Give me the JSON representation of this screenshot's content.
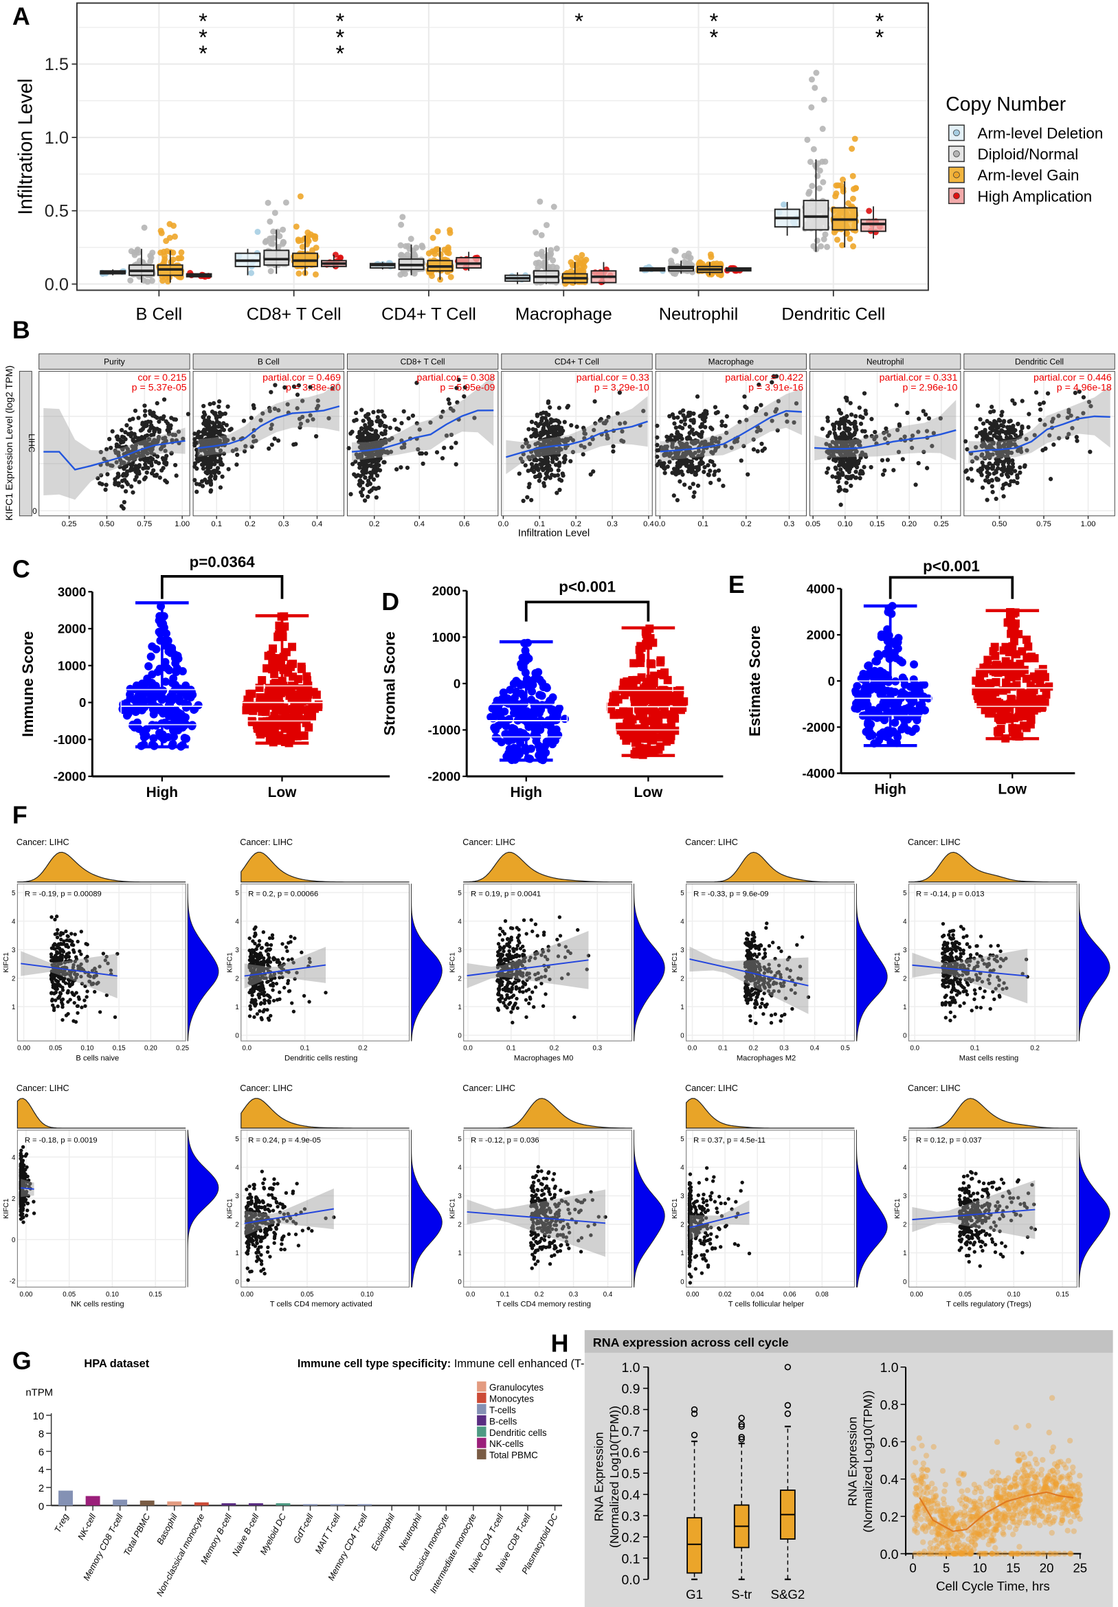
{
  "chart_data": [
    {
      "panel": "A",
      "type": "box",
      "ylabel": "Infiltration Level",
      "y_ticks": [
        0.0,
        0.5,
        1.0,
        1.5
      ],
      "y_tick_labels": [
        "0.0",
        "0.5",
        "1.0",
        "1.5"
      ],
      "ylim": [
        -0.04,
        1.93
      ],
      "categories": [
        "B Cell",
        "CD8+ T Cell",
        "CD4+ T Cell",
        "Macrophage",
        "Neutrophil",
        "Dendritic Cell"
      ],
      "significance": [
        "***",
        "***",
        "",
        "*",
        "**",
        "**"
      ],
      "legend_title": "Copy Number",
      "legend_position": "right",
      "box_format": "[min, q1, median, q3, max]",
      "series": [
        {
          "name": "Arm-level Deletion",
          "color": "#a6cee3",
          "fill": "#e4f1f8",
          "boxes": [
            [
              0.06,
              0.07,
              0.08,
              0.09,
              0.1
            ],
            [
              0.06,
              0.12,
              0.16,
              0.21,
              0.24
            ],
            [
              0.1,
              0.11,
              0.13,
              0.14,
              0.15
            ],
            [
              0.0,
              0.02,
              0.04,
              0.06,
              0.08
            ],
            [
              0.09,
              0.09,
              0.1,
              0.11,
              0.11
            ],
            [
              0.33,
              0.39,
              0.45,
              0.51,
              0.56
            ]
          ]
        },
        {
          "name": "Diploid/Normal",
          "color": "#b5b5b5",
          "fill": "#e6e6e6",
          "boxes": [
            [
              0.01,
              0.06,
              0.09,
              0.13,
              0.24
            ],
            [
              0.07,
              0.13,
              0.17,
              0.23,
              0.37
            ],
            [
              0.06,
              0.1,
              0.13,
              0.17,
              0.27
            ],
            [
              0.0,
              0.01,
              0.05,
              0.09,
              0.25
            ],
            [
              0.07,
              0.09,
              0.11,
              0.12,
              0.16
            ],
            [
              0.22,
              0.37,
              0.46,
              0.57,
              0.85
            ]
          ]
        },
        {
          "name": "Arm-level Gain",
          "color": "#eea62a",
          "fill": "#f2b640",
          "boxes": [
            [
              0.01,
              0.06,
              0.1,
              0.13,
              0.23
            ],
            [
              0.06,
              0.12,
              0.16,
              0.21,
              0.33
            ],
            [
              0.03,
              0.09,
              0.12,
              0.16,
              0.25
            ],
            [
              0.0,
              0.01,
              0.04,
              0.07,
              0.15
            ],
            [
              0.06,
              0.08,
              0.1,
              0.12,
              0.15
            ],
            [
              0.25,
              0.37,
              0.44,
              0.52,
              0.7
            ]
          ]
        },
        {
          "name": "High Amplication",
          "color": "#dd1111",
          "fill": "#f2aaaa",
          "boxes": [
            [
              0.05,
              0.05,
              0.06,
              0.07,
              0.07
            ],
            [
              0.11,
              0.12,
              0.14,
              0.16,
              0.2
            ],
            [
              0.09,
              0.11,
              0.14,
              0.18,
              0.22
            ],
            [
              0.0,
              0.01,
              0.05,
              0.09,
              0.15
            ],
            [
              0.09,
              0.09,
              0.1,
              0.11,
              0.11
            ],
            [
              0.31,
              0.36,
              0.41,
              0.44,
              0.53
            ]
          ]
        }
      ]
    },
    {
      "panel": "B",
      "type": "scatter",
      "ylabel": "KIFC1 Expression Level (log2 TPM)",
      "xlabel": "Infiltration Level",
      "strip_label": "LIHC",
      "y_ticks": [
        0
      ],
      "facets": [
        {
          "title": "Purity",
          "stat_line1": "cor = 0.215",
          "stat_line2": "p = 5.37e-05",
          "xlim": [
            0.05,
            1.05
          ],
          "x_ticks": [
            "0.25",
            "0.50",
            "0.75",
            "1.00"
          ]
        },
        {
          "title": "B Cell",
          "stat_line1": "partial.cor = 0.469",
          "stat_line2": "p = 3.38e-20",
          "xlim": [
            0.03,
            0.48
          ],
          "x_ticks": [
            "0.1",
            "0.2",
            "0.3",
            "0.4"
          ]
        },
        {
          "title": "CD8+ T Cell",
          "stat_line1": "partial.cor = 0.308",
          "stat_line2": "p = 5.95e-09",
          "xlim": [
            0.08,
            0.75
          ],
          "x_ticks": [
            "0.2",
            "0.4",
            "0.6"
          ]
        },
        {
          "title": "CD4+ T Cell",
          "stat_line1": "partial.cor = 0.33",
          "stat_line2": "p = 3.29e-10",
          "xlim": [
            -0.005,
            0.41
          ],
          "x_ticks": [
            "0.0",
            "0.1",
            "0.2",
            "0.3",
            "0.4"
          ]
        },
        {
          "title": "Macrophage",
          "stat_line1": "partial.cor = 0.422",
          "stat_line2": "p = 3.91e-16",
          "xlim": [
            -0.01,
            0.34
          ],
          "x_ticks": [
            "0.0",
            "0.1",
            "0.2",
            "0.3"
          ]
        },
        {
          "title": "Neutrophil",
          "stat_line1": "partial.cor = 0.331",
          "stat_line2": "p = 2.96e-10",
          "xlim": [
            0.045,
            0.28
          ],
          "x_ticks": [
            "0.05",
            "0.10",
            "0.15",
            "0.20",
            "0.25"
          ]
        },
        {
          "title": "Dendritic Cell",
          "stat_line1": "partial.cor = 0.446",
          "stat_line2": "p = 4.96e-18",
          "xlim": [
            0.3,
            1.15
          ],
          "x_ticks": [
            "0.50",
            "0.75",
            "1.00"
          ]
        }
      ]
    },
    {
      "panel": "C",
      "type": "scatter-box",
      "ylabel": "Immune Score",
      "ylim": [
        -2000,
        3000
      ],
      "y_ticks": [
        3000,
        2000,
        1000,
        0,
        -1000,
        -2000
      ],
      "p_label": "p=0.0364",
      "groups": [
        {
          "name": "High",
          "color": "#0000ff",
          "min": -1200,
          "q1": -600,
          "median": -100,
          "q3": 350,
          "max": 2700
        },
        {
          "name": "Low",
          "color": "#e00000",
          "min": -1100,
          "q1": -500,
          "median": 0,
          "q3": 450,
          "max": 2350
        }
      ]
    },
    {
      "panel": "D",
      "type": "scatter-box",
      "ylabel": "Stromal Score",
      "ylim": [
        -2000,
        2000
      ],
      "y_ticks": [
        2000,
        1000,
        0,
        -1000,
        -2000
      ],
      "p_label": "p<0.001",
      "groups": [
        {
          "name": "High",
          "color": "#0000ff",
          "min": -1650,
          "q1": -1150,
          "median": -800,
          "q3": -450,
          "max": 900
        },
        {
          "name": "Low",
          "color": "#e00000",
          "min": -1550,
          "q1": -1000,
          "median": -500,
          "q3": -150,
          "max": 1200
        }
      ]
    },
    {
      "panel": "E",
      "type": "scatter-box",
      "ylabel": "Estimate Score",
      "ylim": [
        -4000,
        4000
      ],
      "y_ticks": [
        4000,
        2000,
        0,
        -2000,
        -4000
      ],
      "p_label": "p<0.001",
      "groups": [
        {
          "name": "High",
          "color": "#0000ff",
          "min": -2800,
          "q1": -1500,
          "median": -750,
          "q3": 0,
          "max": 3250
        },
        {
          "name": "Low",
          "color": "#e00000",
          "min": -2500,
          "q1": -1100,
          "median": -300,
          "q3": 500,
          "max": 3050
        }
      ]
    },
    {
      "panel": "F",
      "type": "scatter",
      "plots": [
        {
          "title": "Cancer: LIHC",
          "ylabel": "KIFC1",
          "xlabel": "B cells naive",
          "stat": "R = -0.19, p = 0.00089",
          "xlim": [
            -0.01,
            0.255
          ],
          "x_ticks": [
            "0.00",
            "0.05",
            "0.10",
            "0.15",
            "0.20",
            "0.25"
          ],
          "y_ticks": [
            1,
            2,
            3,
            4,
            5
          ],
          "ylim": [
            -0.2,
            5.3
          ]
        },
        {
          "title": "Cancer: LIHC",
          "ylabel": "KIFC1",
          "xlabel": "Dendritic cells resting",
          "stat": "R = 0.2, p = 0.00066",
          "xlim": [
            -0.01,
            0.28
          ],
          "x_ticks": [
            "0.0",
            "0.1",
            "0.2"
          ],
          "y_ticks": [
            0,
            1,
            2,
            3,
            4,
            5
          ],
          "ylim": [
            -0.2,
            5.3
          ]
        },
        {
          "title": "Cancer: LIHC",
          "ylabel": "KIFC1",
          "xlabel": "Macrophages M0",
          "stat": "R = 0.19, p = 0.0041",
          "xlim": [
            -0.01,
            0.38
          ],
          "x_ticks": [
            "0.0",
            "0.1",
            "0.2",
            "0.3"
          ],
          "y_ticks": [
            0,
            1,
            2,
            3,
            4,
            5
          ],
          "ylim": [
            -0.2,
            5.3
          ]
        },
        {
          "title": "Cancer: LIHC",
          "ylabel": "KIFC1",
          "xlabel": "Macrophages M2",
          "stat": "R = -0.33, p = 9.6e-09",
          "xlim": [
            -0.02,
            0.53
          ],
          "x_ticks": [
            "0.0",
            "0.1",
            "0.2",
            "0.3",
            "0.4",
            "0.5"
          ],
          "y_ticks": [
            0,
            1,
            2,
            3,
            4,
            5
          ],
          "ylim": [
            -0.2,
            5.3
          ]
        },
        {
          "title": "Cancer: LIHC",
          "ylabel": "KIFC1",
          "xlabel": "Mast cells resting",
          "stat": "R = -0.14, p = 0.013",
          "xlim": [
            -0.01,
            0.27
          ],
          "x_ticks": [
            "0.0",
            "0.1",
            "0.2"
          ],
          "y_ticks": [
            0,
            1,
            2,
            3,
            4,
            5
          ],
          "ylim": [
            -0.2,
            5.3
          ]
        },
        {
          "title": "Cancer: LIHC",
          "ylabel": "KIFC1",
          "xlabel": "NK cells resting",
          "stat": "R = -0.18, p = 0.0019",
          "xlim": [
            -0.01,
            0.185
          ],
          "x_ticks": [
            "0.00",
            "0.05",
            "0.10",
            "0.15"
          ],
          "y_ticks": [
            -2,
            0,
            2,
            4
          ],
          "ylim": [
            -2.3,
            5.3
          ]
        },
        {
          "title": "Cancer: LIHC",
          "ylabel": "KIFC1",
          "xlabel": "T cells CD4 memory activated",
          "stat": "R = 0.24, p = 4.9e-05",
          "xlim": [
            -0.005,
            0.135
          ],
          "x_ticks": [
            "0.00",
            "0.05",
            "0.10"
          ],
          "y_ticks": [
            0,
            1,
            2,
            3,
            4,
            5
          ],
          "ylim": [
            -0.2,
            5.3
          ]
        },
        {
          "title": "Cancer: LIHC",
          "ylabel": "KIFC1",
          "xlabel": "T cells CD4 memory resting",
          "stat": "R = -0.12, p = 0.036",
          "xlim": [
            -0.02,
            0.47
          ],
          "x_ticks": [
            "0.0",
            "0.1",
            "0.2",
            "0.3",
            "0.4"
          ],
          "y_ticks": [
            0,
            1,
            2,
            3,
            4,
            5
          ],
          "ylim": [
            -0.2,
            5.3
          ]
        },
        {
          "title": "Cancer: LIHC",
          "ylabel": "KIFC1",
          "xlabel": "T cells follicular helper",
          "stat": "R = 0.37, p = 4.5e-11",
          "xlim": [
            -0.004,
            0.1
          ],
          "x_ticks": [
            "0.00",
            "0.02",
            "0.04",
            "0.06",
            "0.08"
          ],
          "y_ticks": [
            0,
            1,
            2,
            3,
            4,
            5
          ],
          "ylim": [
            -0.2,
            5.3
          ]
        },
        {
          "title": "Cancer: LIHC",
          "ylabel": "KIFC1",
          "xlabel": "T cells regulatory (Tregs)",
          "stat": "R = 0.12, p = 0.037",
          "xlim": [
            -0.008,
            0.165
          ],
          "x_ticks": [
            "0.00",
            "0.05",
            "0.10",
            "0.15"
          ],
          "y_ticks": [
            0,
            1,
            2,
            3,
            4,
            5
          ],
          "ylim": [
            -0.2,
            5.3
          ]
        }
      ]
    },
    {
      "panel": "G",
      "type": "bar",
      "title": "HPA dataset",
      "subtitle_bold": "Immune cell type specificity:",
      "subtitle": "Immune cell enhanced (T-reg)",
      "ylabel": "nTPM",
      "ylim": [
        0,
        10
      ],
      "y_ticks": [
        0,
        2,
        4,
        6,
        8,
        10
      ],
      "categories": [
        "T-reg",
        "NK-cell",
        "Memory CD8 T-cell",
        "Total PBMC",
        "Basophil",
        "Non-classical monocyte",
        "Memory B-cell",
        "Naive B-cell",
        "Myeloid DC",
        "GdT-cell",
        "MAIT T-cell",
        "Memory CD4 T-cell",
        "Eosinophil",
        "Neutrophil",
        "Classical monocyte",
        "Intermediate monocyte",
        "Naive CD4 T-cell",
        "Naive CD8 T-cell",
        "Plasmacytoid DC"
      ],
      "values": [
        1.65,
        1.05,
        0.65,
        0.55,
        0.45,
        0.35,
        0.25,
        0.25,
        0.25,
        0.15,
        0.15,
        0.15,
        0,
        0,
        0,
        0,
        0,
        0,
        0
      ],
      "bar_group": [
        2,
        5,
        2,
        6,
        0,
        1,
        3,
        3,
        4,
        2,
        2,
        2,
        0,
        0,
        1,
        1,
        2,
        2,
        4
      ],
      "legend_position": "top-right",
      "legend": [
        {
          "name": "Granulocytes",
          "color": "#e39b80"
        },
        {
          "name": "Monocytes",
          "color": "#cc4b37"
        },
        {
          "name": "T-cells",
          "color": "#8491b4"
        },
        {
          "name": "B-cells",
          "color": "#5a2d82"
        },
        {
          "name": "Dendritic cells",
          "color": "#4e9a83"
        },
        {
          "name": "NK-cells",
          "color": "#9b1f7a"
        },
        {
          "name": "Total PBMC",
          "color": "#7a5c45"
        }
      ]
    },
    {
      "panel": "H",
      "type": "box",
      "header": "RNA expression across cell cycle",
      "ylabel_line1": "RNA Expression",
      "ylabel_line2": "(Normalized Log10(TPM))",
      "ylim": [
        0,
        1
      ],
      "y_ticks": [
        "0.0",
        "0.1",
        "0.2",
        "0.3",
        "0.4",
        "0.5",
        "0.6",
        "0.7",
        "0.8",
        "0.9",
        "1.0"
      ],
      "color": "#eba52a",
      "categories": [
        "G1",
        "S-tr",
        "S&G2"
      ],
      "boxes": [
        {
          "min": 0.0,
          "q1": 0.03,
          "median": 0.165,
          "q3": 0.29,
          "max": 0.65,
          "outliers": [
            0.68,
            0.78,
            0.8
          ]
        },
        {
          "min": 0.0,
          "q1": 0.15,
          "median": 0.25,
          "q3": 0.35,
          "max": 0.64,
          "outliers": [
            0.66,
            0.67,
            0.72,
            0.73,
            0.76
          ]
        },
        {
          "min": 0.0,
          "q1": 0.19,
          "median": 0.305,
          "q3": 0.42,
          "max": 0.72,
          "outliers": [
            0.78,
            0.82,
            1.0
          ]
        }
      ]
    },
    {
      "panel": "H",
      "type": "scatter",
      "ylabel_line1": "RNA Expression",
      "ylabel_line2": "(Normalized Log10(TPM))",
      "xlabel": "Cell Cycle Time, hrs",
      "xlim": [
        -1,
        25.5
      ],
      "x_ticks": [
        0,
        5,
        10,
        15,
        20,
        25
      ],
      "ylim": [
        0,
        1
      ],
      "y_ticks": [
        "0.0",
        "0.2",
        "0.4",
        "0.6",
        "0.8",
        "1.0"
      ],
      "color": "#f0a030",
      "trend": {
        "x": [
          1,
          3,
          6,
          8,
          11,
          14,
          17,
          20,
          22,
          24
        ],
        "y": [
          0.3,
          0.18,
          0.12,
          0.13,
          0.22,
          0.28,
          0.31,
          0.33,
          0.31,
          0.3
        ]
      }
    }
  ]
}
